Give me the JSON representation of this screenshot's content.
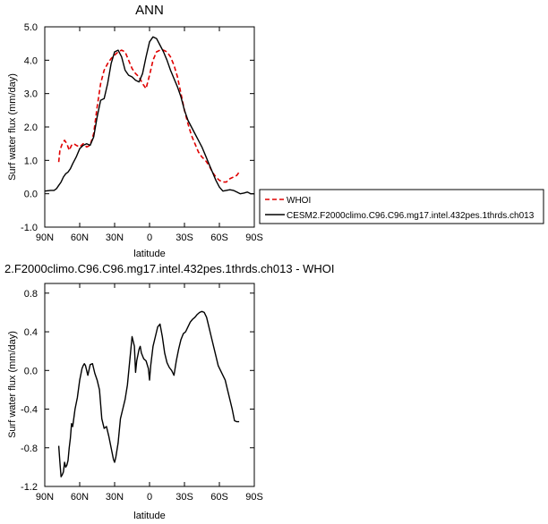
{
  "chart_data": [
    {
      "type": "line",
      "title": "ANN",
      "xlabel": "latitude",
      "ylabel": "Surf water flux (mm/day)",
      "xlim": [
        90,
        -90
      ],
      "ylim": [
        -1.0,
        5.0
      ],
      "xticks": [
        90,
        60,
        30,
        0,
        -30,
        -60,
        -90
      ],
      "xtick_labels": [
        "90N",
        "60N",
        "30N",
        "0",
        "30S",
        "60S",
        "90S"
      ],
      "yticks": [
        -1,
        0,
        1,
        2,
        3,
        4,
        5
      ],
      "ytick_labels": [
        "-1.0",
        "0.0",
        "1.0",
        "2.0",
        "3.0",
        "4.0",
        "5.0"
      ],
      "legend": "right",
      "series": [
        {
          "name": "WHOI",
          "color": "#e00000",
          "dash": "dashed",
          "x": [
            78,
            77,
            75,
            73,
            71,
            69,
            67,
            65,
            63,
            60,
            57,
            54,
            51,
            48,
            45,
            42,
            39,
            36,
            33,
            30,
            27,
            24,
            21,
            18,
            15,
            12,
            9,
            6,
            3,
            0,
            -3,
            -6,
            -9,
            -12,
            -15,
            -18,
            -21,
            -24,
            -27,
            -30,
            -33,
            -36,
            -39,
            -42,
            -45,
            -48,
            -51,
            -54,
            -57,
            -60,
            -63,
            -66,
            -69,
            -72,
            -75,
            -77
          ],
          "y": [
            0.95,
            1.3,
            1.5,
            1.6,
            1.5,
            1.3,
            1.45,
            1.5,
            1.45,
            1.4,
            1.5,
            1.4,
            1.45,
            1.8,
            2.6,
            3.3,
            3.7,
            3.9,
            4.05,
            4.15,
            4.25,
            4.3,
            4.25,
            4.0,
            3.75,
            3.6,
            3.5,
            3.3,
            3.15,
            3.55,
            4.0,
            4.25,
            4.3,
            4.3,
            4.25,
            4.1,
            3.85,
            3.5,
            3.0,
            2.5,
            2.1,
            1.75,
            1.5,
            1.25,
            1.1,
            1.0,
            0.85,
            0.65,
            0.5,
            0.4,
            0.35,
            0.35,
            0.45,
            0.5,
            0.55,
            0.65
          ]
        },
        {
          "name": "CESM2.F2000climo.C96.C96.mg17.intel.432pes.1thrds.ch013",
          "color": "#000000",
          "dash": "solid",
          "x": [
            90,
            85,
            82,
            80,
            78,
            76,
            74,
            72,
            70,
            68,
            66,
            63,
            60,
            57,
            54,
            51,
            48,
            45,
            42,
            39,
            36,
            33,
            30,
            27,
            24,
            21,
            18,
            15,
            12,
            9,
            6,
            3,
            0,
            -3,
            -6,
            -9,
            -12,
            -15,
            -18,
            -21,
            -24,
            -27,
            -30,
            -33,
            -36,
            -39,
            -42,
            -45,
            -48,
            -51,
            -54,
            -57,
            -60,
            -63,
            -66,
            -69,
            -72,
            -75,
            -78,
            -81,
            -84,
            -87,
            -90
          ],
          "y": [
            0.08,
            0.1,
            0.1,
            0.15,
            0.25,
            0.35,
            0.5,
            0.6,
            0.65,
            0.75,
            0.9,
            1.1,
            1.35,
            1.45,
            1.5,
            1.45,
            1.7,
            2.3,
            2.8,
            2.85,
            3.3,
            3.9,
            4.25,
            4.3,
            4.1,
            3.7,
            3.55,
            3.5,
            3.4,
            3.35,
            3.6,
            4.1,
            4.55,
            4.7,
            4.65,
            4.45,
            4.25,
            4.0,
            3.7,
            3.45,
            3.2,
            2.9,
            2.5,
            2.2,
            2.0,
            1.8,
            1.6,
            1.4,
            1.15,
            0.9,
            0.65,
            0.4,
            0.2,
            0.08,
            0.1,
            0.12,
            0.1,
            0.05,
            0.0,
            0.02,
            0.05,
            0.0,
            0.0
          ]
        }
      ]
    },
    {
      "type": "line",
      "title": "2.F2000climo.C96.C96.mg17.intel.432pes.1thrds.ch013 - WHOI",
      "xlabel": "latitude",
      "ylabel": "Surf water flux (mm/day)",
      "xlim": [
        90,
        -90
      ],
      "ylim": [
        -1.2,
        0.9
      ],
      "xticks": [
        90,
        60,
        30,
        0,
        -30,
        -60,
        -90
      ],
      "xtick_labels": [
        "90N",
        "60N",
        "30N",
        "0",
        "30S",
        "60S",
        "90S"
      ],
      "yticks": [
        -1.2,
        -0.8,
        -0.4,
        0.0,
        0.4,
        0.8
      ],
      "ytick_labels": [
        "-1.2",
        "-0.8",
        "-0.4",
        "0.0",
        "0.4",
        "0.8"
      ],
      "series": [
        {
          "color": "#000000",
          "dash": "solid",
          "x": [
            78,
            77,
            76,
            75,
            74,
            73,
            72,
            71,
            70,
            69,
            68,
            67,
            66,
            64,
            62,
            60,
            58,
            57,
            56,
            55,
            53,
            51,
            49,
            47,
            45,
            43,
            41,
            39,
            37,
            35,
            33,
            31,
            30,
            29,
            27,
            25,
            23,
            21,
            19,
            17,
            15,
            13,
            12,
            11,
            9,
            8,
            7,
            5,
            3,
            1,
            0,
            -1,
            -3,
            -5,
            -7,
            -9,
            -11,
            -13,
            -15,
            -17,
            -19,
            -21,
            -23,
            -25,
            -27,
            -29,
            -31,
            -33,
            -35,
            -37,
            -39,
            -41,
            -43,
            -45,
            -47,
            -49,
            -51,
            -53,
            -55,
            -57,
            -59,
            -61,
            -63,
            -65,
            -67,
            -69,
            -71,
            -73,
            -75,
            -77
          ],
          "y": [
            -0.78,
            -0.95,
            -1.1,
            -1.08,
            -1.05,
            -0.95,
            -1.0,
            -0.98,
            -0.93,
            -0.8,
            -0.7,
            -0.55,
            -0.58,
            -0.4,
            -0.28,
            -0.1,
            0.02,
            0.05,
            0.07,
            0.05,
            -0.05,
            0.06,
            0.07,
            -0.03,
            -0.1,
            -0.2,
            -0.5,
            -0.6,
            -0.58,
            -0.68,
            -0.8,
            -0.92,
            -0.95,
            -0.9,
            -0.75,
            -0.5,
            -0.4,
            -0.3,
            -0.15,
            0.1,
            0.35,
            0.25,
            -0.02,
            0.1,
            0.22,
            0.25,
            0.18,
            0.12,
            0.1,
            0.02,
            -0.1,
            0.05,
            0.25,
            0.35,
            0.45,
            0.48,
            0.35,
            0.18,
            0.08,
            0.03,
            0.0,
            -0.05,
            0.1,
            0.22,
            0.32,
            0.38,
            0.4,
            0.45,
            0.5,
            0.53,
            0.55,
            0.58,
            0.6,
            0.61,
            0.6,
            0.55,
            0.45,
            0.35,
            0.25,
            0.15,
            0.05,
            0.0,
            -0.05,
            -0.1,
            -0.2,
            -0.3,
            -0.4,
            -0.52,
            -0.53,
            -0.53
          ]
        }
      ]
    }
  ]
}
